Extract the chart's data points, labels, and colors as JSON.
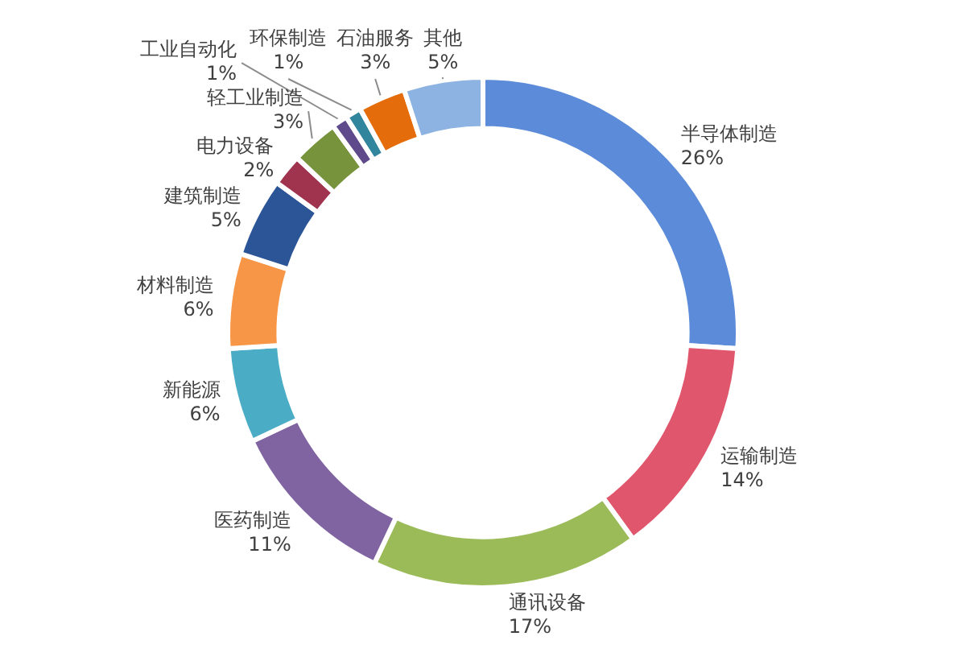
{
  "chart_data": {
    "type": "donut",
    "categories": [
      "半导体制造",
      "运输制造",
      "通讯设备",
      "医药制造",
      "新能源",
      "材料制造",
      "建筑制造",
      "电力设备",
      "轻工业制造",
      "工业自动化",
      "环保制造",
      "石油服务",
      "其他"
    ],
    "values": [
      26,
      14,
      17,
      11,
      6,
      6,
      5,
      2,
      3,
      1,
      1,
      3,
      5
    ],
    "value_labels": [
      "26%",
      "14%",
      "17%",
      "11%",
      "6%",
      "6%",
      "5%",
      "2%",
      "3%",
      "1%",
      "1%",
      "3%",
      "5%"
    ],
    "colors": [
      "#5b8bd9",
      "#e0566c",
      "#9bbb59",
      "#8064a2",
      "#4bacc6",
      "#f79646",
      "#2c5597",
      "#a0344e",
      "#77933c",
      "#5f4b8b",
      "#31859c",
      "#e46c0a",
      "#8db3e2"
    ]
  }
}
